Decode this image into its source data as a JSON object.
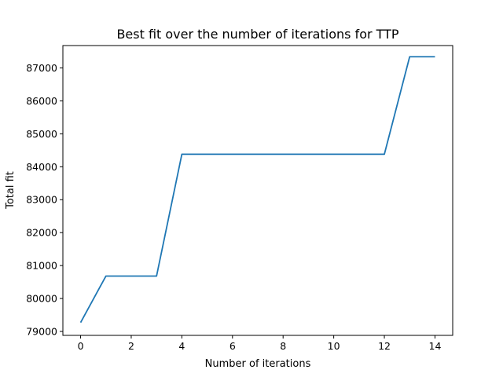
{
  "chart_data": {
    "type": "line",
    "title": "Best fit over the number of iterations for TTP",
    "xlabel": "Number of iterations",
    "ylabel": "Total fit",
    "xlim": [
      -0.7,
      14.7
    ],
    "ylim": [
      78880,
      87680
    ],
    "xticks": [
      0,
      2,
      4,
      6,
      8,
      10,
      12,
      14
    ],
    "yticks": [
      79000,
      80000,
      81000,
      82000,
      83000,
      84000,
      85000,
      86000,
      87000
    ],
    "grid": false,
    "series": [
      {
        "color": "#1f77b4",
        "x": [
          0,
          1,
          2,
          3,
          4,
          5,
          6,
          7,
          8,
          9,
          10,
          11,
          12,
          13,
          14
        ],
        "y": [
          79270,
          80680,
          80680,
          80680,
          84380,
          84380,
          84380,
          84380,
          84380,
          84380,
          84380,
          84380,
          84380,
          87340,
          87340
        ]
      }
    ]
  }
}
